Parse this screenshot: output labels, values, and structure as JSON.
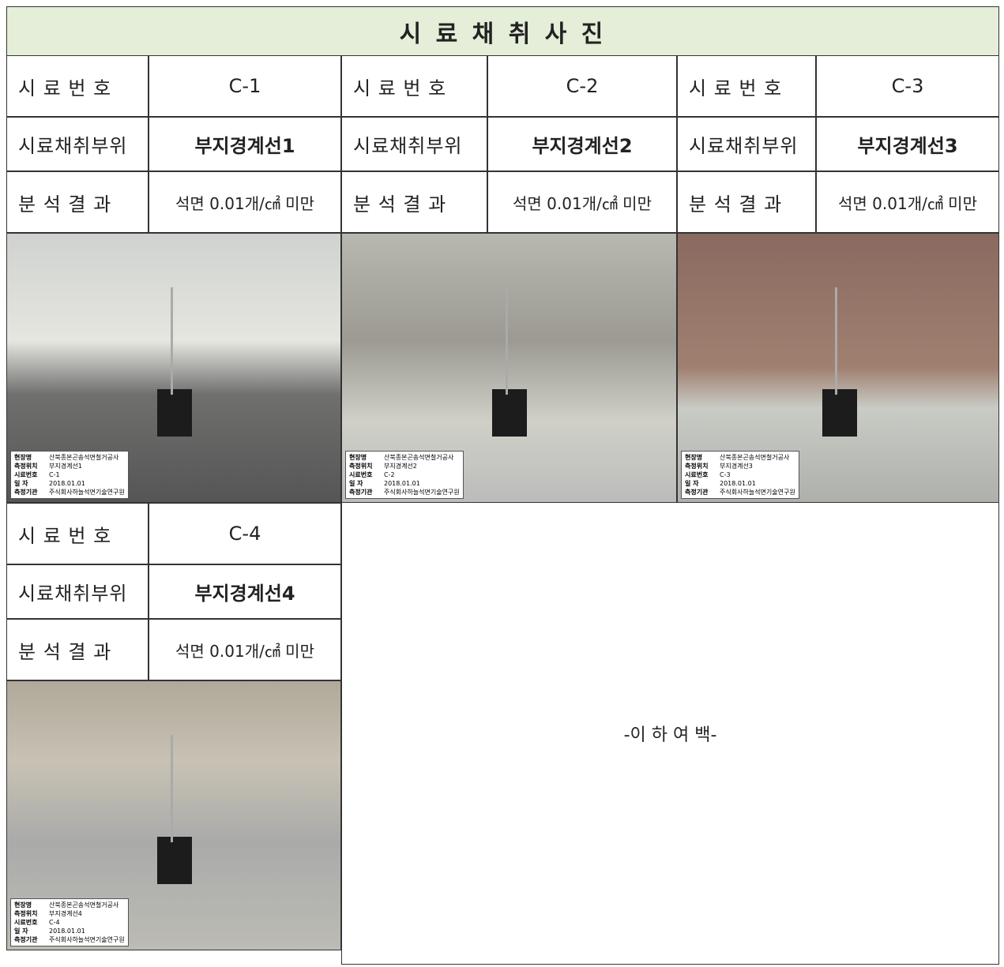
{
  "header": {
    "title": "시 료 채 취 사 진"
  },
  "samples": [
    {
      "no_label": "시 료 번 호",
      "no": "C-1",
      "site_label": "시료채취부위",
      "site": "부지경계선1",
      "result_label": "분 석 결 과",
      "result": "석면 0.01개/㎠ 미만",
      "photo_caption": [
        [
          "현장명",
          "산북종본곤송석면철거공사"
        ],
        [
          "측정위치",
          "부지경계선1"
        ],
        [
          "시료번호",
          "C-1"
        ],
        [
          "일 자",
          "2018.01.01"
        ],
        [
          "측정기관",
          "주식회사하늘석면기술연구원"
        ]
      ]
    },
    {
      "no_label": "시 료 번 호",
      "no": "C-2",
      "site_label": "시료채취부위",
      "site": "부지경계선2",
      "result_label": "분 석 결 과",
      "result": "석면 0.01개/㎠ 미만",
      "photo_caption": [
        [
          "현장명",
          "산북종본곤송석면철거공사"
        ],
        [
          "측정위치",
          "부지경계선2"
        ],
        [
          "시료번호",
          "C-2"
        ],
        [
          "일 자",
          "2018.01.01"
        ],
        [
          "측정기관",
          "주식회사하늘석면기술연구원"
        ]
      ]
    },
    {
      "no_label": "시 료 번 호",
      "no": "C-3",
      "site_label": "시료채취부위",
      "site": "부지경계선3",
      "result_label": "분 석 결 과",
      "result": "석면 0.01개/㎠ 미만",
      "photo_caption": [
        [
          "현장명",
          "산북종본곤송석면철거공사"
        ],
        [
          "측정위치",
          "부지경계선3"
        ],
        [
          "시료번호",
          "C-3"
        ],
        [
          "일 자",
          "2018.01.01"
        ],
        [
          "측정기관",
          "주식회사하늘석면기술연구원"
        ]
      ]
    },
    {
      "no_label": "시 료 번 호",
      "no": "C-4",
      "site_label": "시료채취부위",
      "site": "부지경계선4",
      "result_label": "분 석 결 과",
      "result": "석면 0.01개/㎠ 미만",
      "photo_caption": [
        [
          "현장명",
          "산북종본곤송석면철거공사"
        ],
        [
          "측정위치",
          "부지경계선4"
        ],
        [
          "시료번호",
          "C-4"
        ],
        [
          "일 자",
          "2018.01.01"
        ],
        [
          "측정기관",
          "주식회사하늘석면기술연구원"
        ]
      ]
    }
  ],
  "blank_note": "-이 하 여 백-"
}
